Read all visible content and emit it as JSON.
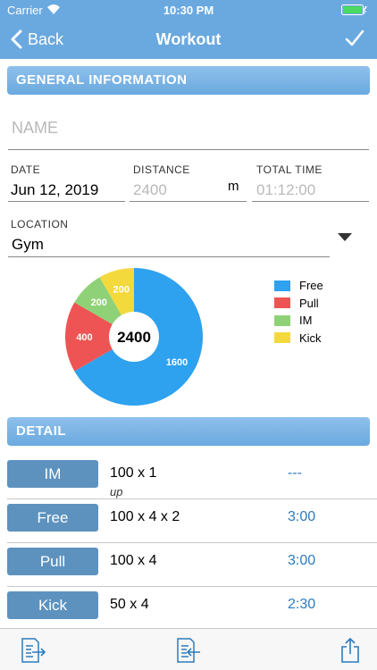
{
  "status_bar": {
    "carrier": "Carrier",
    "time": "10:30 PM"
  },
  "nav": {
    "back_label": "Back",
    "title": "Workout",
    "done_icon": "checkmark-icon"
  },
  "general": {
    "header": "GENERAL INFORMATION",
    "name_placeholder": "NAME",
    "date_label": "DATE",
    "date_value": "Jun 12, 2019",
    "distance_label": "DISTANCE",
    "distance_value": "2400",
    "distance_unit": "m",
    "total_time_label": "TOTAL TIME",
    "total_time_value": "01:12:00",
    "location_label": "LOCATION",
    "location_value": "Gym"
  },
  "chart_data": {
    "type": "pie",
    "center_label": "2400",
    "categories": [
      "Free",
      "Pull",
      "IM",
      "Kick"
    ],
    "values": [
      1600,
      400,
      200,
      200
    ],
    "colors": [
      "#2ea1ef",
      "#ee5454",
      "#8fd177",
      "#f3d93c"
    ]
  },
  "detail": {
    "header": "DETAIL",
    "rows": [
      {
        "stroke": "IM",
        "set": "100 x 1",
        "note": "up",
        "interval": "---"
      },
      {
        "stroke": "Free",
        "set": "100 x 4 x 2",
        "note": "",
        "interval": "3:00"
      },
      {
        "stroke": "Pull",
        "set": "100 x 4",
        "note": "",
        "interval": "3:00"
      },
      {
        "stroke": "Kick",
        "set": "50 x 4",
        "note": "",
        "interval": "2:30"
      }
    ]
  },
  "toolbar": {
    "icons": [
      "export-right-icon",
      "import-left-icon",
      "share-icon"
    ]
  },
  "colors": {
    "nav_blue": "#6aa9df",
    "button_blue": "#5d92bf",
    "link_blue": "#2b7bbf"
  }
}
